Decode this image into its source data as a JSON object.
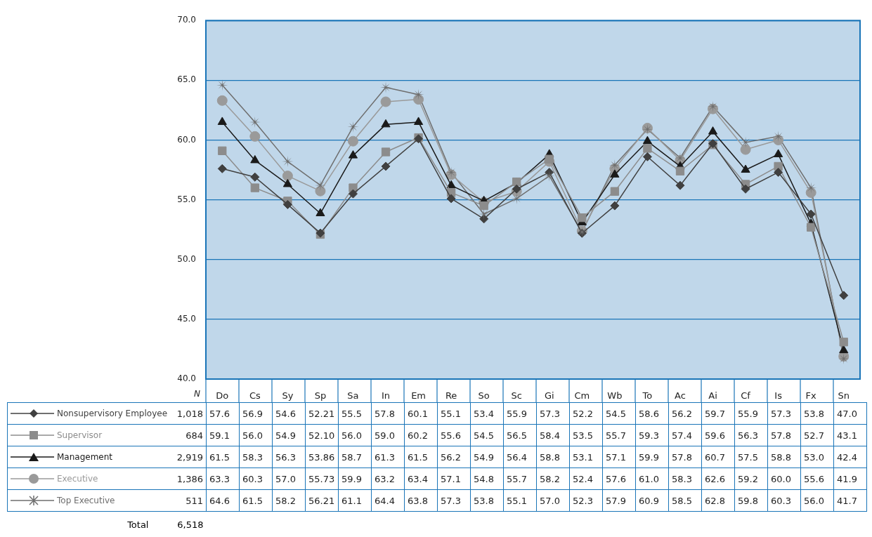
{
  "chart_data": {
    "type": "line",
    "categories": [
      "Do",
      "Cs",
      "Sy",
      "Sp",
      "Sa",
      "In",
      "Em",
      "Re",
      "So",
      "Sc",
      "Gi",
      "Cm",
      "Wb",
      "To",
      "Ac",
      "Ai",
      "Cf",
      "Is",
      "Fx",
      "Sn"
    ],
    "series": [
      {
        "name": "Nonsupervisory Employee",
        "color": "#404040",
        "marker": "diamond",
        "values": [
          57.6,
          56.9,
          54.6,
          52.21,
          55.5,
          57.8,
          60.1,
          55.1,
          53.4,
          55.9,
          57.3,
          52.2,
          54.5,
          58.6,
          56.2,
          59.7,
          55.9,
          57.3,
          53.8,
          47.0
        ],
        "value_labels": [
          "57.6",
          "56.9",
          "54.6",
          "52.21",
          "55.5",
          "57.8",
          "60.1",
          "55.1",
          "53.4",
          "55.9",
          "57.3",
          "52.2",
          "54.5",
          "58.6",
          "56.2",
          "59.7",
          "55.9",
          "57.3",
          "53.8",
          "47.0"
        ]
      },
      {
        "name": "Supervisor",
        "color": "#8c8c8c",
        "marker": "square",
        "values": [
          59.1,
          56.0,
          54.9,
          52.1,
          56.0,
          59.0,
          60.2,
          55.6,
          54.5,
          56.5,
          58.4,
          53.5,
          55.7,
          59.3,
          57.4,
          59.6,
          56.3,
          57.8,
          52.7,
          43.1
        ],
        "value_labels": [
          "59.1",
          "56.0",
          "54.9",
          "52.10",
          "56.0",
          "59.0",
          "60.2",
          "55.6",
          "54.5",
          "56.5",
          "58.4",
          "53.5",
          "55.7",
          "59.3",
          "57.4",
          "59.6",
          "56.3",
          "57.8",
          "52.7",
          "43.1"
        ]
      },
      {
        "name": "Management",
        "color": "#1a1a1a",
        "marker": "triangle",
        "values": [
          61.5,
          58.3,
          56.3,
          53.86,
          58.7,
          61.3,
          61.5,
          56.2,
          54.9,
          56.4,
          58.8,
          53.1,
          57.1,
          59.9,
          57.8,
          60.7,
          57.5,
          58.8,
          53.0,
          42.4
        ],
        "value_labels": [
          "61.5",
          "58.3",
          "56.3",
          "53.86",
          "58.7",
          "61.3",
          "61.5",
          "56.2",
          "54.9",
          "56.4",
          "58.8",
          "53.1",
          "57.1",
          "59.9",
          "57.8",
          "60.7",
          "57.5",
          "58.8",
          "53.0",
          "42.4"
        ]
      },
      {
        "name": "Executive",
        "color": "#9a9a9a",
        "marker": "circle",
        "values": [
          63.3,
          60.3,
          57.0,
          55.73,
          59.9,
          63.2,
          63.4,
          57.1,
          54.8,
          55.7,
          58.2,
          52.4,
          57.6,
          61.0,
          58.3,
          62.6,
          59.2,
          60.0,
          55.6,
          41.9
        ],
        "value_labels": [
          "63.3",
          "60.3",
          "57.0",
          "55.73",
          "59.9",
          "63.2",
          "63.4",
          "57.1",
          "54.8",
          "55.7",
          "58.2",
          "52.4",
          "57.6",
          "61.0",
          "58.3",
          "62.6",
          "59.2",
          "60.0",
          "55.6",
          "41.9"
        ]
      },
      {
        "name": "Top Executive",
        "color": "#6e6e6e",
        "marker": "star",
        "values": [
          64.6,
          61.5,
          58.2,
          56.21,
          61.1,
          64.4,
          63.8,
          57.3,
          53.8,
          55.1,
          57.0,
          52.3,
          57.9,
          60.9,
          58.5,
          62.8,
          59.8,
          60.3,
          56.0,
          41.7
        ],
        "value_labels": [
          "64.6",
          "61.5",
          "58.2",
          "56.21",
          "61.1",
          "64.4",
          "63.8",
          "57.3",
          "53.8",
          "55.1",
          "57.0",
          "52.3",
          "57.9",
          "60.9",
          "58.5",
          "62.8",
          "59.8",
          "60.3",
          "56.0",
          "41.7"
        ]
      }
    ],
    "ylim": [
      40,
      70
    ],
    "yticks": [
      {
        "value": 40,
        "label": "40.0"
      },
      {
        "value": 45,
        "label": "45.0"
      },
      {
        "value": 50,
        "label": "50.0"
      },
      {
        "value": 55,
        "label": "55.0"
      },
      {
        "value": 60,
        "label": "60.0"
      },
      {
        "value": 65,
        "label": "65.0"
      },
      {
        "value": 70,
        "label": "70.0"
      }
    ],
    "grid": "y",
    "legend": "bottom left",
    "line_style": "solid",
    "annotations": [
      "N",
      "1,018",
      "684",
      "2,919",
      "1,386",
      "511",
      "Total",
      "6,518"
    ]
  }
}
